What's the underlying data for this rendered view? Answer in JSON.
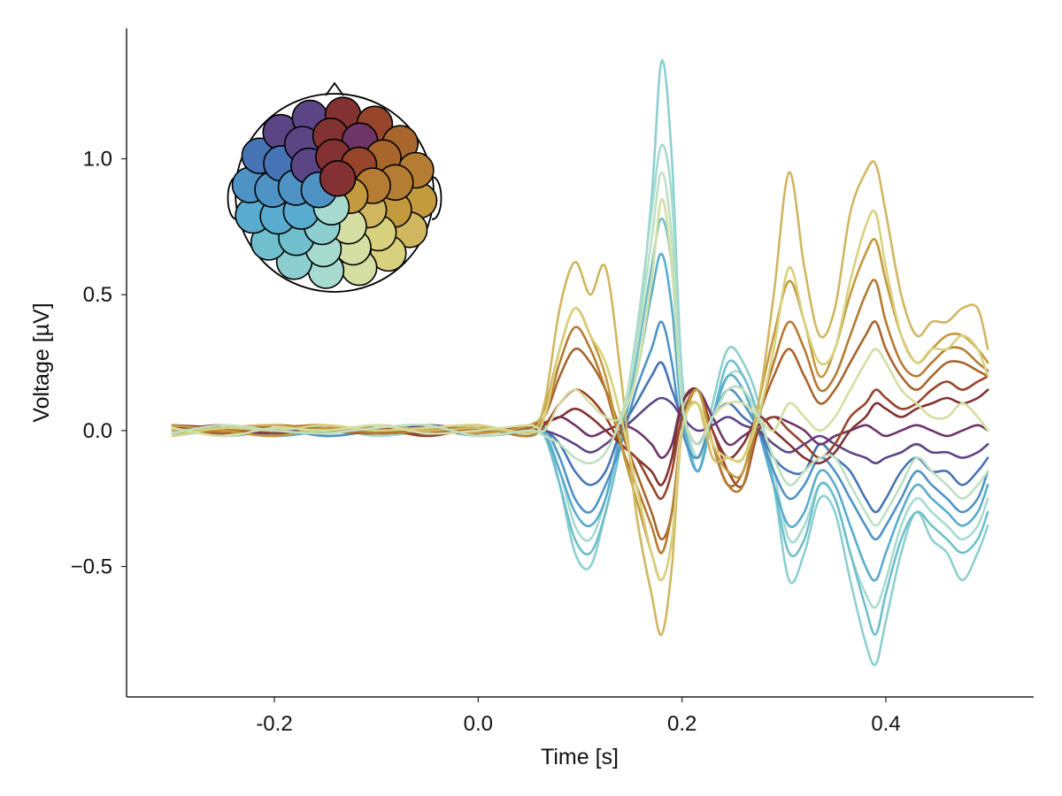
{
  "chart_data": {
    "type": "line",
    "title": "",
    "xlabel": "Time [s]",
    "ylabel": "Voltage [µV]",
    "xlim": [
      -0.345,
      0.545
    ],
    "ylim": [
      -0.98,
      1.48
    ],
    "x_ticks": [
      -0.2,
      0.0,
      0.2,
      0.4
    ],
    "x_tick_labels": [
      "-0.2",
      "0.0",
      "0.2",
      "0.4"
    ],
    "y_ticks": [
      -0.5,
      0.0,
      0.5,
      1.0
    ],
    "y_tick_labels": [
      "−0.5",
      "0.0",
      "0.5",
      "1.0"
    ],
    "grid": false,
    "x": [
      -0.3,
      -0.25,
      -0.2,
      -0.15,
      -0.1,
      -0.05,
      0.0,
      0.05,
      0.065,
      0.08,
      0.095,
      0.11,
      0.125,
      0.14,
      0.155,
      0.17,
      0.18,
      0.19,
      0.2,
      0.215,
      0.23,
      0.245,
      0.26,
      0.275,
      0.29,
      0.305,
      0.32,
      0.335,
      0.35,
      0.365,
      0.38,
      0.39,
      0.4,
      0.415,
      0.43,
      0.445,
      0.46,
      0.475,
      0.49,
      0.5
    ],
    "series": [
      {
        "color": "#8dcfd0",
        "values": [
          0.0,
          -0.01,
          0.01,
          -0.02,
          0.0,
          0.02,
          -0.01,
          0.02,
          0.0,
          -0.2,
          -0.45,
          -0.5,
          -0.3,
          -0.05,
          0.3,
          0.85,
          1.36,
          1.0,
          0.2,
          -0.15,
          0.1,
          0.3,
          0.25,
          0.1,
          -0.2,
          -0.55,
          -0.45,
          -0.25,
          -0.3,
          -0.55,
          -0.78,
          -0.86,
          -0.7,
          -0.45,
          -0.3,
          -0.4,
          -0.45,
          -0.55,
          -0.45,
          -0.35
        ]
      },
      {
        "color": "#a7dbcf",
        "values": [
          -0.02,
          0.0,
          -0.01,
          0.01,
          -0.02,
          0.0,
          0.02,
          -0.02,
          0.0,
          -0.15,
          -0.35,
          -0.4,
          -0.25,
          0.0,
          0.35,
          0.8,
          1.05,
          0.85,
          0.15,
          -0.1,
          0.05,
          0.2,
          0.2,
          0.05,
          -0.15,
          -0.4,
          -0.35,
          -0.2,
          -0.25,
          -0.45,
          -0.6,
          -0.65,
          -0.55,
          -0.35,
          -0.25,
          -0.3,
          -0.35,
          -0.4,
          -0.35,
          -0.25
        ]
      },
      {
        "color": "#6fbfcc",
        "values": [
          0.01,
          -0.02,
          0.0,
          0.01,
          -0.01,
          0.0,
          0.01,
          0.0,
          -0.02,
          -0.2,
          -0.4,
          -0.45,
          -0.3,
          -0.05,
          0.25,
          0.6,
          0.78,
          0.6,
          0.1,
          -0.15,
          0.05,
          0.25,
          0.2,
          0.05,
          -0.2,
          -0.45,
          -0.4,
          -0.2,
          -0.25,
          -0.45,
          -0.65,
          -0.75,
          -0.6,
          -0.4,
          -0.3,
          -0.35,
          -0.4,
          -0.45,
          -0.4,
          -0.3
        ]
      },
      {
        "color": "#5aaccf",
        "values": [
          0.0,
          0.01,
          -0.02,
          0.0,
          0.01,
          -0.01,
          0.0,
          0.01,
          -0.01,
          -0.15,
          -0.3,
          -0.35,
          -0.25,
          0.0,
          0.2,
          0.5,
          0.65,
          0.45,
          0.05,
          -0.15,
          0.05,
          0.2,
          0.15,
          0.0,
          -0.2,
          -0.35,
          -0.3,
          -0.15,
          -0.2,
          -0.35,
          -0.5,
          -0.55,
          -0.45,
          -0.3,
          -0.2,
          -0.25,
          -0.3,
          -0.35,
          -0.3,
          -0.2
        ]
      },
      {
        "color": "#4f93c5",
        "values": [
          0.02,
          0.0,
          0.01,
          -0.02,
          0.0,
          0.01,
          -0.02,
          0.0,
          0.01,
          -0.1,
          -0.25,
          -0.3,
          -0.2,
          -0.05,
          0.15,
          0.3,
          0.4,
          0.25,
          0.0,
          -0.1,
          0.05,
          0.15,
          0.1,
          0.0,
          -0.15,
          -0.25,
          -0.2,
          -0.1,
          -0.15,
          -0.25,
          -0.35,
          -0.4,
          -0.35,
          -0.25,
          -0.15,
          -0.2,
          -0.25,
          -0.3,
          -0.25,
          -0.15
        ]
      },
      {
        "color": "#4674b4",
        "values": [
          -0.01,
          0.01,
          0.0,
          0.02,
          -0.01,
          0.0,
          0.01,
          -0.01,
          0.0,
          -0.05,
          -0.15,
          -0.2,
          -0.15,
          0.0,
          0.1,
          0.2,
          0.25,
          0.15,
          0.05,
          -0.05,
          0.05,
          0.1,
          0.05,
          0.0,
          -0.1,
          -0.15,
          -0.15,
          -0.05,
          -0.1,
          -0.15,
          -0.25,
          -0.3,
          -0.25,
          -0.15,
          -0.1,
          -0.15,
          -0.15,
          -0.2,
          -0.15,
          -0.1
        ]
      },
      {
        "color": "#5b4585",
        "values": [
          0.0,
          -0.01,
          0.01,
          0.0,
          -0.01,
          0.02,
          0.0,
          0.01,
          0.0,
          -0.02,
          -0.05,
          -0.08,
          -0.05,
          0.0,
          0.05,
          0.1,
          0.12,
          0.1,
          0.05,
          0.0,
          0.02,
          0.05,
          0.02,
          0.0,
          -0.05,
          -0.08,
          -0.05,
          -0.02,
          -0.05,
          -0.08,
          -0.1,
          -0.12,
          -0.1,
          -0.08,
          -0.05,
          -0.08,
          -0.08,
          -0.1,
          -0.08,
          -0.05
        ]
      },
      {
        "color": "#6e3569",
        "values": [
          0.01,
          0.0,
          -0.01,
          0.01,
          0.0,
          -0.01,
          0.01,
          0.0,
          0.02,
          0.05,
          0.02,
          -0.02,
          0.0,
          0.02,
          0.0,
          -0.05,
          -0.1,
          -0.05,
          0.1,
          0.15,
          0.05,
          -0.05,
          -0.02,
          0.02,
          0.05,
          0.03,
          0.0,
          -0.05,
          -0.02,
          0.0,
          0.02,
          0.0,
          -0.02,
          0.0,
          0.02,
          0.0,
          -0.02,
          0.0,
          0.02,
          0.0
        ]
      },
      {
        "color": "#823232",
        "values": [
          0.02,
          0.01,
          0.0,
          -0.01,
          0.01,
          0.0,
          -0.01,
          0.02,
          0.03,
          0.05,
          0.08,
          0.05,
          0.0,
          -0.05,
          -0.1,
          -0.15,
          -0.2,
          -0.1,
          0.1,
          0.15,
          0.0,
          -0.1,
          -0.05,
          0.05,
          0.0,
          -0.05,
          -0.1,
          -0.12,
          -0.08,
          0.0,
          0.05,
          0.1,
          0.08,
          0.05,
          0.08,
          0.1,
          0.12,
          0.1,
          0.12,
          0.15
        ]
      },
      {
        "color": "#96452a",
        "values": [
          0.0,
          0.02,
          -0.01,
          0.0,
          0.01,
          -0.02,
          0.01,
          0.0,
          0.02,
          0.1,
          0.15,
          0.12,
          0.05,
          -0.05,
          -0.1,
          -0.2,
          -0.25,
          -0.15,
          0.05,
          0.15,
          0.0,
          -0.15,
          -0.2,
          0.0,
          0.05,
          0.0,
          -0.05,
          -0.1,
          -0.05,
          0.05,
          0.1,
          0.15,
          0.12,
          0.08,
          0.1,
          0.15,
          0.18,
          0.15,
          0.18,
          0.2
        ]
      },
      {
        "color": "#a8652c",
        "values": [
          0.01,
          -0.01,
          0.02,
          0.0,
          -0.01,
          0.01,
          0.0,
          0.01,
          0.05,
          0.2,
          0.3,
          0.25,
          0.15,
          0.0,
          -0.15,
          -0.3,
          -0.4,
          -0.3,
          0.0,
          0.15,
          -0.05,
          -0.2,
          -0.15,
          0.05,
          0.2,
          0.3,
          0.2,
          0.1,
          0.15,
          0.25,
          0.35,
          0.4,
          0.3,
          0.2,
          0.15,
          0.2,
          0.25,
          0.25,
          0.22,
          0.2
        ]
      },
      {
        "color": "#b57c33",
        "values": [
          -0.01,
          0.0,
          0.01,
          0.02,
          -0.01,
          0.0,
          0.01,
          -0.02,
          0.05,
          0.25,
          0.38,
          0.3,
          0.15,
          -0.05,
          -0.2,
          -0.35,
          -0.45,
          -0.3,
          0.0,
          0.15,
          -0.05,
          -0.2,
          -0.2,
          0.05,
          0.25,
          0.4,
          0.3,
          0.15,
          0.2,
          0.35,
          0.5,
          0.55,
          0.4,
          0.25,
          0.2,
          0.25,
          0.3,
          0.3,
          0.25,
          0.22
        ]
      },
      {
        "color": "#c49a3e",
        "values": [
          0.02,
          0.0,
          -0.02,
          0.01,
          0.0,
          0.01,
          -0.01,
          0.02,
          0.08,
          0.3,
          0.45,
          0.35,
          0.2,
          -0.05,
          -0.25,
          -0.45,
          -0.55,
          -0.4,
          0.0,
          0.15,
          -0.05,
          -0.15,
          -0.15,
          0.1,
          0.35,
          0.55,
          0.4,
          0.2,
          0.3,
          0.5,
          0.65,
          0.7,
          0.55,
          0.35,
          0.25,
          0.3,
          0.35,
          0.35,
          0.3,
          0.25
        ]
      },
      {
        "color": "#d1b660",
        "values": [
          0.0,
          0.01,
          0.02,
          -0.01,
          0.02,
          0.0,
          0.01,
          0.0,
          0.1,
          0.45,
          0.62,
          0.5,
          0.6,
          0.2,
          -0.3,
          -0.6,
          -0.75,
          -0.5,
          0.0,
          0.1,
          -0.1,
          -0.1,
          -0.1,
          0.1,
          0.5,
          0.95,
          0.6,
          0.35,
          0.45,
          0.8,
          0.95,
          0.98,
          0.8,
          0.5,
          0.35,
          0.4,
          0.4,
          0.45,
          0.45,
          0.3
        ]
      },
      {
        "color": "#d8d17e",
        "values": [
          -0.02,
          0.01,
          0.0,
          0.02,
          0.0,
          0.01,
          0.02,
          -0.01,
          0.05,
          0.3,
          0.45,
          0.35,
          0.25,
          0.05,
          -0.2,
          -0.45,
          -0.55,
          -0.4,
          0.0,
          0.1,
          -0.05,
          -0.1,
          -0.1,
          0.05,
          0.3,
          0.6,
          0.4,
          0.25,
          0.3,
          0.55,
          0.75,
          0.8,
          0.6,
          0.35,
          0.25,
          0.3,
          0.3,
          0.35,
          0.3,
          0.2
        ]
      },
      {
        "color": "#d5dea3",
        "values": [
          0.01,
          -0.02,
          0.01,
          0.0,
          0.02,
          -0.01,
          0.0,
          0.02,
          0.0,
          0.1,
          0.15,
          0.1,
          0.05,
          0.05,
          0.2,
          0.55,
          0.85,
          0.6,
          0.1,
          -0.05,
          0.05,
          0.1,
          0.1,
          0.05,
          0.0,
          0.1,
          0.05,
          0.0,
          0.05,
          0.15,
          0.25,
          0.3,
          0.25,
          0.15,
          0.1,
          0.05,
          0.05,
          0.1,
          0.05,
          0.0
        ]
      },
      {
        "color": "#bde0c2",
        "values": [
          -0.01,
          0.02,
          0.0,
          -0.01,
          0.01,
          0.02,
          -0.02,
          0.0,
          -0.02,
          -0.05,
          -0.1,
          -0.12,
          -0.08,
          0.05,
          0.3,
          0.7,
          0.95,
          0.7,
          0.1,
          -0.05,
          0.05,
          0.15,
          0.15,
          0.05,
          -0.1,
          -0.2,
          -0.15,
          -0.1,
          -0.1,
          -0.2,
          -0.3,
          -0.35,
          -0.3,
          -0.2,
          -0.1,
          -0.15,
          -0.2,
          -0.25,
          -0.2,
          -0.15
        ]
      }
    ]
  },
  "inset": {
    "channel_colors": [
      "#5b4585",
      "#823232",
      "#4674b4",
      "#4f93c5",
      "#5aaccf",
      "#6fbfcc",
      "#8dcfd0",
      "#a7dbcf",
      "#bde0c2",
      "#d5dea3",
      "#d8d17e",
      "#d1b660",
      "#c49a3e",
      "#b57c33",
      "#a8652c",
      "#96452a",
      "#6e3569"
    ]
  }
}
